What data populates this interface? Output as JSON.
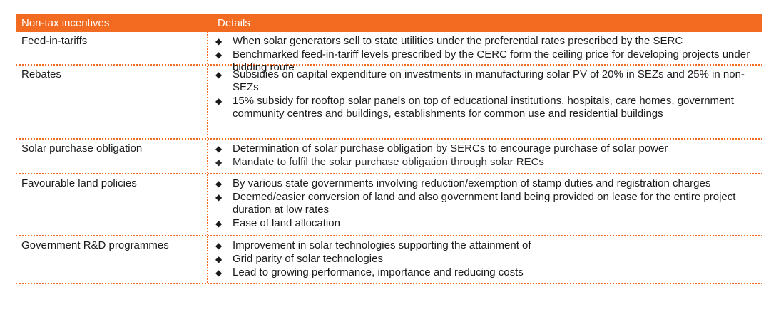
{
  "accent_color": "#f26b21",
  "table": {
    "headers": {
      "incentive": "Non-tax incentives",
      "details": "Details"
    },
    "rows": [
      {
        "name": "Feed-in-tariffs",
        "details": [
          "When solar generators sell to state utilities under the preferential rates prescribed by the SERC",
          "Benchmarked feed-in-tariff levels prescribed by the CERC form the ceiling price for developing projects under bidding route"
        ]
      },
      {
        "name": "Rebates",
        "details": [
          "Subsidies on capital expenditure on investments in manufacturing solar PV of 20% in SEZs and 25% in non-SEZs",
          "15% subsidy for rooftop solar panels on top of educational institutions, hospitals, care homes, government community centres and buildings, establishments for common use and residential buildings"
        ]
      },
      {
        "name": "Solar purchase obligation",
        "details": [
          "Determination of solar purchase obligation by SERCs to encourage purchase of solar power",
          "Mandate to fulfil the solar purchase obligation through solar RECs"
        ]
      },
      {
        "name": "Favourable land policies",
        "details": [
          "By various state governments involving reduction/exemption of stamp duties and registration charges",
          "Deemed/easier conversion of land and also government land being provided on lease for the entire project duration at low rates",
          "Ease of land allocation"
        ]
      },
      {
        "name": "Government R&D programmes",
        "details": [
          "Improvement in solar technologies supporting the attainment of",
          "Grid parity of solar technologies",
          "Lead to growing performance, importance and reducing costs"
        ]
      }
    ]
  },
  "bullet_glyph": "◆"
}
